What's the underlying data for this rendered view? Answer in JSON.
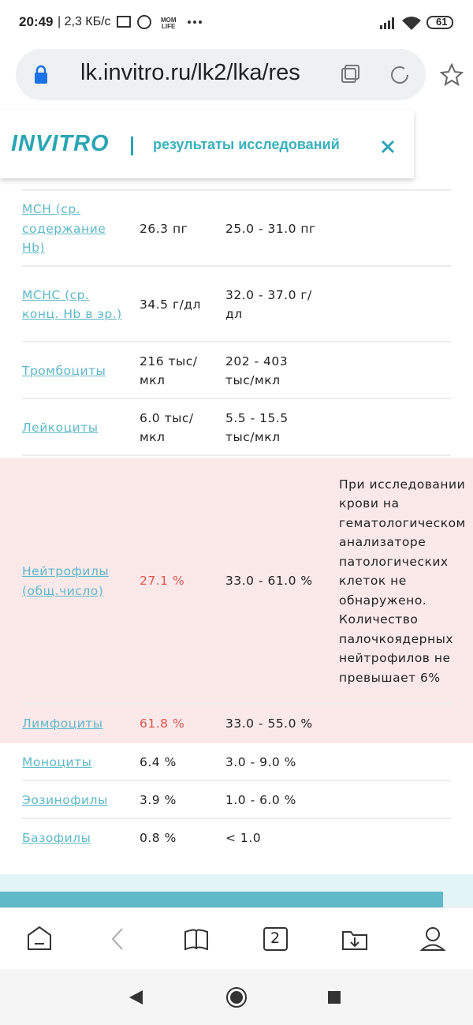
{
  "status_bar": {
    "time": "20:49",
    "speed": "| 2,3 КБ/с",
    "battery": "61"
  },
  "address_bar": {
    "url": "lk.invitro.ru/lk2/lka/res"
  },
  "header": {
    "logo": "INVITRO",
    "title": "результаты исследований"
  },
  "table": {
    "rows": [
      [
        "MCH (ср. содержание Hb)",
        "26.3 пг",
        "25.0 - 31.0 пг"
      ],
      [
        "MCHC (ср. конц. Hb в эр.)",
        "34.5 г/дл",
        "32.0 - 37.0 г/дл"
      ],
      [
        "Тромбоциты",
        "216 тыс/мкл",
        "202 - 403 тыс/мкл"
      ],
      [
        "Лейкоциты",
        "6.0 тыс/мкл",
        "5.5 - 15.5 тыс/мкл"
      ],
      [
        "Нейтрофилы (общ.число)",
        "27.1 %",
        "33.0 - 61.0 %",
        "При исследовании крови на гематологическом анализаторе патологических клеток не обнаружено. Количество палочкоядерных нейтрофилов не превышает 6%"
      ],
      [
        "Лимфоциты",
        "61.8 %",
        "33.0 - 55.0 %"
      ],
      [
        "Моноциты",
        "6.4 %",
        "3.0 - 9.0 %"
      ],
      [
        "Эозинофилы",
        "3.9 %",
        "1.0 - 6.0 %"
      ],
      [
        "Базофилы",
        "0.8 %",
        "< 1.0"
      ]
    ]
  },
  "bottom_nav": {
    "tabs_count": "2"
  }
}
